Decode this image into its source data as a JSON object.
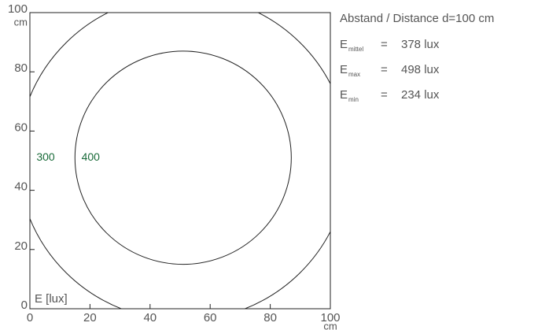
{
  "chart_data": {
    "type": "contour",
    "legend": "E [lux]",
    "x_unit": "cm",
    "y_unit": "cm",
    "xlim": [
      0,
      100
    ],
    "ylim": [
      0,
      100
    ],
    "xticks": [
      0,
      20,
      40,
      60,
      80,
      100
    ],
    "yticks": [
      0,
      20,
      40,
      60,
      80,
      100
    ],
    "center": [
      51,
      51
    ],
    "line_color": "#222222",
    "contours": [
      {
        "level": 300,
        "radius": 55,
        "color": "#1a6b3a"
      },
      {
        "level": 400,
        "radius": 36,
        "color": "#1a6b3a"
      }
    ]
  },
  "info": {
    "heading": "Abstand / Distance d=100 cm",
    "rows": [
      {
        "symbol": "E",
        "sub": "mittel",
        "eq": "=",
        "value": "378 lux"
      },
      {
        "symbol": "E",
        "sub": "max",
        "eq": "=",
        "value": "498 lux"
      },
      {
        "symbol": "E",
        "sub": "min",
        "eq": "=",
        "value": "234 lux"
      }
    ]
  }
}
